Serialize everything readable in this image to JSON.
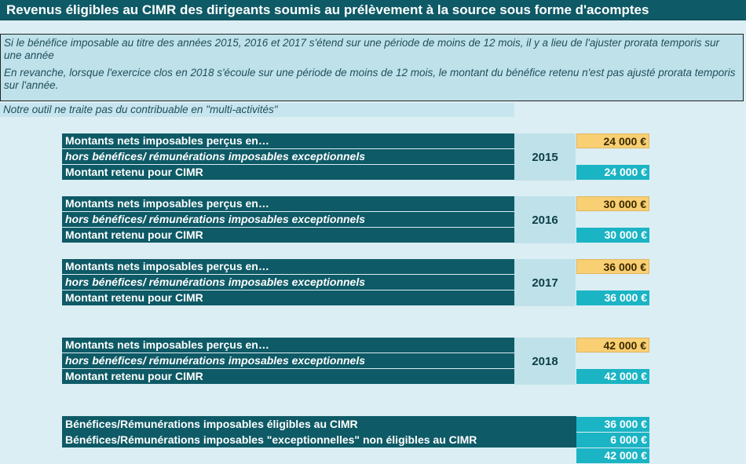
{
  "header": {
    "title": "Revenus éligibles au CIMR des dirigeants soumis au prélèvement à la source sous forme d'acomptes"
  },
  "info": {
    "para1": "Si le bénéfice imposable au titre des années 2015, 2016 et 2017 s'étend sur une période de moins de 12 mois, il y a lieu de l'ajuster prorata temporis sur une année",
    "para2": "En revanche, lorsque l'exercice clos en 2018 s'écoule sur une période de moins de 12 mois, le montant du bénéfice retenu n'est pas ajusté prorata temporis sur l'année.",
    "note": "Notre outil ne traite pas du contribuable en \"multi-activités\""
  },
  "blocks": [
    {
      "row1": "Montants nets imposables perçus en…",
      "row2": "hors bénéfices/ rémunérations imposables exceptionnels",
      "row3": "Montant retenu pour CIMR",
      "year": "2015",
      "input": "24 000 €",
      "retained": "24 000 €"
    },
    {
      "row1": "Montants nets imposables perçus en…",
      "row2": "hors bénéfices/ rémunérations imposables exceptionnels",
      "row3": "Montant retenu pour CIMR",
      "year": "2016",
      "input": "30 000 €",
      "retained": "30 000 €"
    },
    {
      "row1": "Montants nets imposables perçus en…",
      "row2": "hors bénéfices/ rémunérations imposables exceptionnels",
      "row3": "Montant retenu pour CIMR",
      "year": "2017",
      "input": "36 000 €",
      "retained": "36 000 €"
    },
    {
      "row1": "Montants nets imposables perçus en…",
      "row2": "hors bénéfices/ rémunérations imposables exceptionnels",
      "row3": "Montant retenu pour CIMR",
      "year": "2018",
      "input": "42 000 €",
      "retained": "42 000 €"
    }
  ],
  "summary": {
    "eligible_label": "Bénéfices/Rémunérations imposables éligibles au CIMR",
    "eligible_value": "36 000 €",
    "exceptional_label": "Bénéfices/Rémunérations imposables \"exceptionnelles\" non éligibles au CIMR",
    "exceptional_value": "6 000 €",
    "total_value": "42 000 €"
  },
  "colors": {
    "dark_teal": "#0e5a66",
    "light_blue": "#bfe1ea",
    "input_orange": "#f9cf73",
    "calc_cyan": "#1bb4c4"
  }
}
